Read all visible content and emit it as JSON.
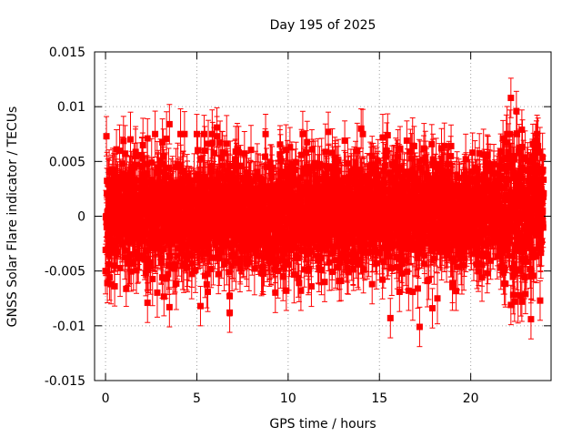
{
  "chart_data": {
    "type": "scatter",
    "title": "Day 195 of 2025",
    "xlabel": "GPS time / hours",
    "ylabel": "GNSS Solar Flare indicator / TECUs",
    "xlim": [
      -0.6,
      24.4
    ],
    "ylim": [
      -0.015,
      0.015
    ],
    "x_ticks": [
      0,
      5,
      10,
      15,
      20
    ],
    "x_tick_labels": [
      "0",
      "5",
      "10",
      "15",
      "20"
    ],
    "y_ticks": [
      -0.015,
      -0.01,
      -0.005,
      0,
      0.005,
      0.01,
      0.015
    ],
    "y_tick_labels": [
      "-0.015",
      "-0.01",
      "-0.005",
      "0",
      "0.005",
      "0.01",
      "0.015"
    ],
    "grid": true,
    "error_bars": true,
    "color": "#ff0000",
    "series": [
      {
        "x": [
          0.05,
          0.2,
          0.3,
          0.5,
          0.6,
          2.3,
          3.5,
          3.5,
          5.0,
          6.1,
          6.8,
          6.1,
          10.1,
          11.3,
          12.2,
          13.1,
          14.0,
          14.6,
          15.6,
          16.5,
          16.9,
          17.2,
          17.9,
          18.4,
          20.1,
          22.2,
          22.5,
          22.8,
          23.0,
          23.4,
          23.6,
          23.8,
          0.1,
          2.3,
          3.3,
          5.2,
          5.6,
          6.8,
          9.9,
          10.7,
          12.0,
          12.9,
          14.6,
          16.1,
          16.6,
          17.1,
          17.7,
          19.0,
          20.9,
          22.2,
          22.4,
          22.8,
          23.3
        ],
        "y": [
          0.0073,
          0.0033,
          -0.0062,
          -0.0064,
          0.0061,
          0.0071,
          0.0084,
          -0.0083,
          0.0075,
          0.0073,
          -0.0088,
          0.0081,
          0.0063,
          0.0061,
          0.0077,
          0.0069,
          0.008,
          0.0055,
          -0.0093,
          0.0069,
          0.0064,
          -0.0101,
          -0.0084,
          0.0062,
          0.0058,
          0.0108,
          0.0096,
          0.0079,
          -0.0071,
          0.0066,
          0.0069,
          -0.0077,
          -0.0061,
          -0.0079,
          -0.0057,
          -0.0082,
          -0.0069,
          -0.0073,
          -0.0068,
          -0.0068,
          -0.006,
          -0.0059,
          -0.0062,
          -0.0069,
          -0.0068,
          -0.0066,
          -0.0058,
          -0.0061,
          -0.0052,
          -0.0081,
          -0.0078,
          -0.0078,
          -0.0094
        ]
      }
    ]
  }
}
